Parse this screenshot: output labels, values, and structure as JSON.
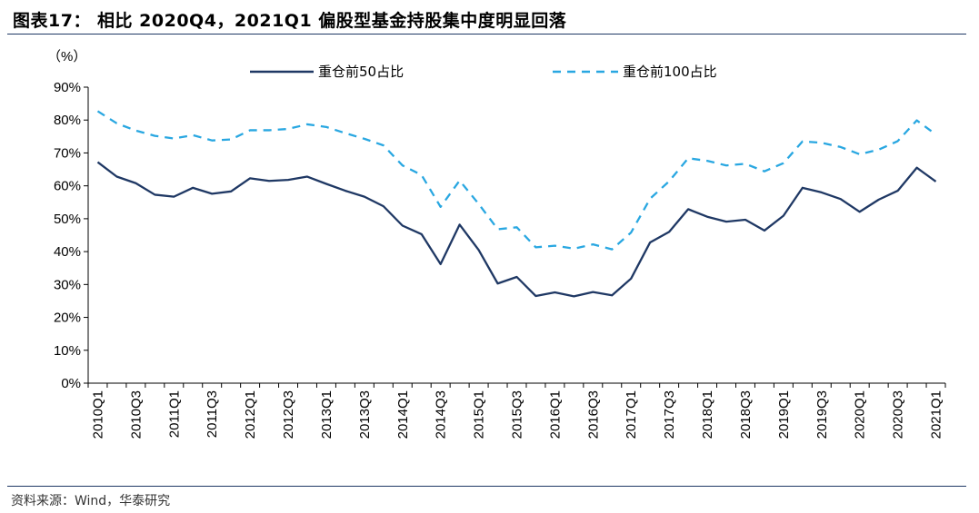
{
  "header": {
    "title": "图表17：  相比 2020Q4，2021Q1 偏股型基金持股集中度明显回落"
  },
  "footer": {
    "source": "资料来源：Wind，华泰研究"
  },
  "chart_data": {
    "type": "line",
    "ylabel": "（%）",
    "ylim": [
      0,
      90
    ],
    "yticks": [
      "0%",
      "10%",
      "20%",
      "30%",
      "40%",
      "50%",
      "60%",
      "70%",
      "80%",
      "90%"
    ],
    "grid": false,
    "legend": "top",
    "x": [
      "2010Q1",
      "2010Q2",
      "2010Q3",
      "2010Q4",
      "2011Q1",
      "2011Q2",
      "2011Q3",
      "2011Q4",
      "2012Q1",
      "2012Q2",
      "2012Q3",
      "2012Q4",
      "2013Q1",
      "2013Q2",
      "2013Q3",
      "2013Q4",
      "2014Q1",
      "2014Q2",
      "2014Q3",
      "2014Q4",
      "2015Q1",
      "2015Q2",
      "2015Q3",
      "2015Q4",
      "2016Q1",
      "2016Q2",
      "2016Q3",
      "2016Q4",
      "2017Q1",
      "2017Q2",
      "2017Q3",
      "2017Q4",
      "2018Q1",
      "2018Q2",
      "2018Q3",
      "2018Q4",
      "2019Q1",
      "2019Q2",
      "2019Q3",
      "2019Q4",
      "2020Q1",
      "2020Q2",
      "2020Q3",
      "2020Q4",
      "2021Q1"
    ],
    "xtick_labels": [
      "2010Q1",
      "2010Q3",
      "2011Q1",
      "2011Q3",
      "2012Q1",
      "2012Q3",
      "2013Q1",
      "2013Q3",
      "2014Q1",
      "2014Q3",
      "2015Q1",
      "2015Q3",
      "2016Q1",
      "2016Q3",
      "2017Q1",
      "2017Q3",
      "2018Q1",
      "2018Q3",
      "2019Q1",
      "2019Q3",
      "2020Q1",
      "2020Q3",
      "2021Q1"
    ],
    "series": [
      {
        "name": "重仓前50占比",
        "color": "#1f3864",
        "style": "solid",
        "values": [
          67.2,
          62.8,
          60.8,
          57.3,
          56.7,
          59.4,
          57.6,
          58.3,
          62.3,
          61.5,
          61.8,
          62.8,
          60.6,
          58.5,
          56.7,
          53.8,
          47.9,
          45.3,
          36.2,
          48.2,
          40.5,
          30.3,
          32.3,
          26.5,
          27.6,
          26.4,
          27.7,
          26.7,
          31.8,
          42.8,
          46.0,
          52.9,
          50.6,
          49.1,
          49.7,
          46.4,
          50.9,
          59.4,
          58.0,
          56.0,
          52.1,
          55.8,
          58.5,
          65.5,
          61.3
        ]
      },
      {
        "name": "重仓前100占比",
        "color": "#29a7e1",
        "style": "dashed",
        "values": [
          82.7,
          79.0,
          76.8,
          75.2,
          74.4,
          75.4,
          73.8,
          74.1,
          76.9,
          76.9,
          77.3,
          78.7,
          77.9,
          76.0,
          74.3,
          72.3,
          66.2,
          63.3,
          53.6,
          61.6,
          54.5,
          46.8,
          47.4,
          41.3,
          41.8,
          40.9,
          42.2,
          40.7,
          45.8,
          56.1,
          61.4,
          68.4,
          67.6,
          66.2,
          66.7,
          64.4,
          66.9,
          73.5,
          73.1,
          71.8,
          69.6,
          71.0,
          73.6,
          79.9,
          75.6
        ]
      }
    ]
  }
}
